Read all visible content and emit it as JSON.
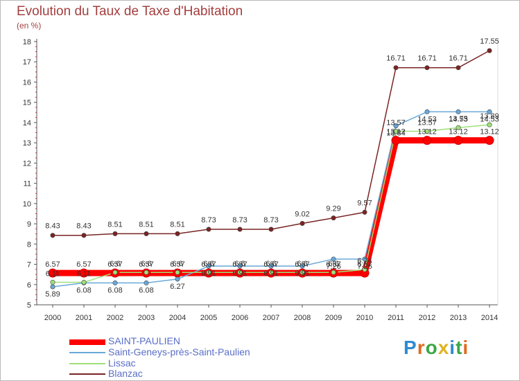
{
  "title": "Evolution du Taux de Taxe d'Habitation",
  "subtitle": "(en %)",
  "logo": {
    "text": "Proxiti",
    "colors": [
      "#2f8bd1",
      "#e06b1f",
      "#3aa844",
      "#e0b21f",
      "#2f8bd1",
      "#3aa844",
      "#e06b1f"
    ]
  },
  "chart_data": {
    "type": "line",
    "title": "Evolution du Taux de Taxe d'Habitation",
    "ylabel": "(en %)",
    "xlabel": "",
    "ylim": [
      5,
      18
    ],
    "yticks": [
      "5",
      "6",
      "7",
      "8",
      "9",
      "10",
      "11",
      "12",
      "13",
      "14",
      "15",
      "16",
      "17",
      "18"
    ],
    "categories": [
      "2000",
      "2001",
      "2002",
      "2003",
      "2004",
      "2005",
      "2006",
      "2007",
      "2008",
      "2009",
      "2010",
      "2011",
      "2012",
      "2013",
      "2014"
    ],
    "series": [
      {
        "name": "SAINT-PAULIEN",
        "color": "#ff0000",
        "values": [
          6.57,
          6.57,
          6.57,
          6.57,
          6.57,
          6.57,
          6.57,
          6.57,
          6.57,
          6.57,
          6.57,
          13.12,
          13.12,
          13.12,
          13.12
        ],
        "labels": [
          "6.57",
          "6.57",
          "6.57",
          "6.57",
          "6.57",
          "6.57",
          "6.57",
          "6.57",
          "6.57",
          "6.57",
          "6.57",
          "13.12",
          "13.12",
          "13.12",
          "13.12"
        ]
      },
      {
        "name": "Saint-Geneys-près-Saint-Paulien",
        "color": "#6aa8d8",
        "values": [
          5.89,
          6.08,
          6.08,
          6.08,
          6.27,
          6.91,
          6.91,
          6.91,
          6.91,
          7.26,
          7.26,
          13.84,
          14.53,
          14.53,
          14.53
        ],
        "labels": [
          "5.89",
          "6.08",
          "6.08",
          "6.08",
          "6.27",
          "6.91",
          "6.91",
          "6.91",
          "6.91",
          "7.26",
          "7.26",
          "13.84",
          "14.53",
          "14.53",
          "14.53"
        ]
      },
      {
        "name": "Lissac",
        "color": "#9ee07a",
        "values": [
          6.11,
          6.11,
          6.6,
          6.6,
          6.6,
          6.6,
          6.6,
          6.6,
          6.6,
          6.6,
          6.74,
          13.57,
          13.57,
          13.75,
          13.89
        ],
        "labels": [
          "6.11",
          "6.11",
          "6.6",
          "6.6",
          "6.6",
          "6.6",
          "6.6",
          "6.6",
          "6.6",
          "6.6",
          "6.74",
          "13.57",
          "13.57",
          "13.75",
          "13.89"
        ]
      },
      {
        "name": "Blanzac",
        "color": "#7a2424",
        "values": [
          8.43,
          8.43,
          8.51,
          8.51,
          8.51,
          8.73,
          8.73,
          8.73,
          9.02,
          9.29,
          9.57,
          16.71,
          16.71,
          16.71,
          17.55
        ],
        "labels": [
          "8.43",
          "8.43",
          "8.51",
          "8.51",
          "8.51",
          "8.73",
          "8.73",
          "8.73",
          "9.02",
          "9.29",
          "9.57",
          "16.71",
          "16.71",
          "16.71",
          "17.55"
        ]
      }
    ],
    "legend_position": "bottom-left"
  }
}
